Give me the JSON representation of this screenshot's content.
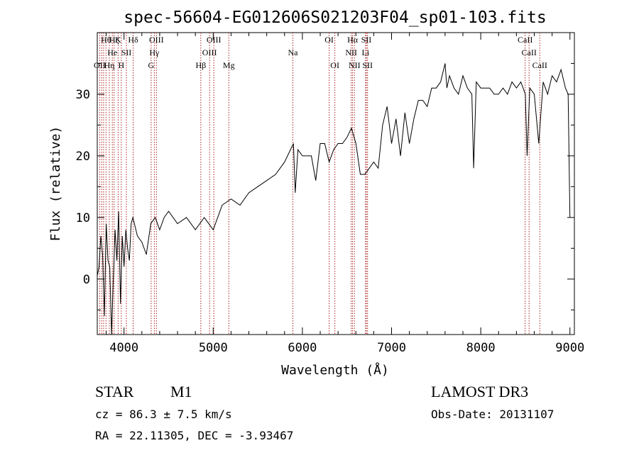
{
  "chart_data": {
    "type": "line",
    "title": "spec-56604-EG012606S021203F04_sp01-103.fits",
    "xlabel": "Wavelength (Å)",
    "ylabel": "Flux (relative)",
    "xlim": [
      3700,
      9050
    ],
    "ylim": [
      -9,
      40
    ],
    "x_ticks": [
      4000,
      5000,
      6000,
      7000,
      8000,
      9000
    ],
    "y_ticks": [
      0,
      10,
      20,
      30
    ],
    "grid": false,
    "series_color": "#000000",
    "line_marker_color": "#aa2222",
    "series": [
      {
        "x": [
          3700,
          3720,
          3740,
          3760,
          3780,
          3800,
          3820,
          3840,
          3860,
          3880,
          3900,
          3920,
          3940,
          3960,
          3980,
          4000,
          4020,
          4040,
          4060,
          4080,
          4100,
          4150,
          4200,
          4250,
          4300,
          4350,
          4400,
          4450,
          4500,
          4600,
          4700,
          4800,
          4900,
          5000,
          5100,
          5200,
          5300,
          5400,
          5500,
          5600,
          5700,
          5800,
          5900,
          5920,
          5950,
          6000,
          6100,
          6150,
          6200,
          6250,
          6300,
          6350,
          6400,
          6450,
          6500,
          6550,
          6600,
          6650,
          6700,
          6750,
          6800,
          6850,
          6900,
          6950,
          7000,
          7050,
          7100,
          7150,
          7200,
          7250,
          7300,
          7350,
          7400,
          7450,
          7500,
          7550,
          7600,
          7620,
          7650,
          7700,
          7750,
          7800,
          7850,
          7900,
          7920,
          7950,
          8000,
          8050,
          8100,
          8150,
          8200,
          8250,
          8300,
          8350,
          8400,
          8450,
          8500,
          8520,
          8550,
          8600,
          8650,
          8700,
          8750,
          8800,
          8850,
          8900,
          8950,
          8980,
          9000
        ],
        "y": [
          0.5,
          2,
          7,
          4,
          -6,
          9,
          3,
          2,
          -9,
          0,
          8,
          3,
          11,
          -4,
          7,
          2,
          8,
          5,
          3,
          9,
          10,
          7,
          6,
          4,
          9,
          10,
          8,
          10,
          11,
          9,
          10,
          8,
          10,
          8,
          12,
          13,
          12,
          14,
          15,
          16,
          17,
          19,
          22,
          14,
          21,
          20,
          20,
          16,
          22,
          22,
          19,
          21,
          22,
          22,
          23,
          24.5,
          22,
          17,
          17,
          18,
          19,
          18,
          25,
          28,
          22,
          26,
          20,
          27,
          22,
          26,
          29,
          29,
          28,
          31,
          31,
          32,
          35,
          31,
          33,
          31,
          30,
          33,
          31,
          30,
          18,
          32,
          31,
          31,
          31,
          30,
          30,
          31,
          30,
          32,
          31,
          32,
          30,
          20,
          31,
          30,
          22,
          32,
          30,
          33,
          32,
          34,
          31,
          30,
          10
        ]
      }
    ],
    "line_markers": [
      {
        "x": 3727,
        "labels": [
          "OII"
        ],
        "rows": [
          2
        ]
      },
      {
        "x": 3750,
        "labels": [],
        "rows": []
      },
      {
        "x": 3771,
        "labels": [],
        "rows": []
      },
      {
        "x": 3798,
        "labels": [
          "Hθ"
        ],
        "rows": [
          0
        ]
      },
      {
        "x": 3835,
        "labels": [
          "Hη"
        ],
        "rows": [
          2
        ]
      },
      {
        "x": 3869,
        "labels": [
          "He"
        ],
        "rows": [
          1
        ]
      },
      {
        "x": 3889,
        "labels": [
          "Hζ"
        ],
        "rows": [
          0
        ]
      },
      {
        "x": 3934,
        "labels": [
          "K"
        ],
        "rows": [
          0
        ]
      },
      {
        "x": 3969,
        "labels": [
          "H"
        ],
        "rows": [
          2
        ]
      },
      {
        "x": 4026,
        "labels": [
          "SII"
        ],
        "rows": [
          1
        ]
      },
      {
        "x": 4102,
        "labels": [
          "Hδ"
        ],
        "rows": [
          0
        ]
      },
      {
        "x": 4304,
        "labels": [
          "G"
        ],
        "rows": [
          2
        ]
      },
      {
        "x": 4340,
        "labels": [
          "Hγ"
        ],
        "rows": [
          1
        ]
      },
      {
        "x": 4363,
        "labels": [
          "OIII"
        ],
        "rows": [
          0
        ]
      },
      {
        "x": 4861,
        "labels": [
          "Hβ"
        ],
        "rows": [
          2
        ]
      },
      {
        "x": 4959,
        "labels": [
          "OIII"
        ],
        "rows": [
          1
        ]
      },
      {
        "x": 5007,
        "labels": [
          "OIII"
        ],
        "rows": [
          0
        ]
      },
      {
        "x": 5175,
        "labels": [
          "Mg"
        ],
        "rows": [
          2
        ]
      },
      {
        "x": 5893,
        "labels": [
          "Na"
        ],
        "rows": [
          1
        ]
      },
      {
        "x": 6300,
        "labels": [
          "OI"
        ],
        "rows": [
          0
        ]
      },
      {
        "x": 6364,
        "labels": [
          "OI"
        ],
        "rows": [
          2
        ]
      },
      {
        "x": 6548,
        "labels": [
          "NII"
        ],
        "rows": [
          1
        ]
      },
      {
        "x": 6563,
        "labels": [
          "Hα"
        ],
        "rows": [
          0
        ]
      },
      {
        "x": 6584,
        "labels": [
          "NII"
        ],
        "rows": [
          2
        ]
      },
      {
        "x": 6708,
        "labels": [
          "Li"
        ],
        "rows": [
          1
        ]
      },
      {
        "x": 6717,
        "labels": [
          "SII"
        ],
        "rows": [
          0
        ]
      },
      {
        "x": 6731,
        "labels": [
          "SII"
        ],
        "rows": [
          2
        ]
      },
      {
        "x": 8498,
        "labels": [
          "CaII"
        ],
        "rows": [
          0
        ]
      },
      {
        "x": 8542,
        "labels": [
          "CaII"
        ],
        "rows": [
          1
        ]
      },
      {
        "x": 8662,
        "labels": [
          "CaII"
        ],
        "rows": [
          2
        ]
      }
    ]
  },
  "info": {
    "class": "STAR",
    "subclass": "M1",
    "survey": "LAMOST DR3",
    "cz": "cz = 86.3 ± 7.5 km/s",
    "obs_date": "Obs-Date: 20131107",
    "coords": "RA =  22.11305, DEC =  -3.93467"
  }
}
